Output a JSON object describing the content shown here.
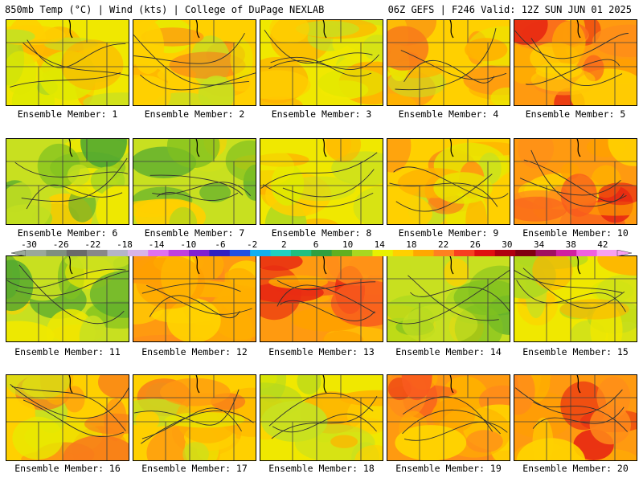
{
  "header": {
    "left": "850mb Temp (°C) | Wind (kts) | College of DuPage NEXLAB",
    "right": "06Z GEFS | F246 Valid: 12Z SUN JUN 01 2025"
  },
  "colorbar": {
    "tick_labels": [
      "-30",
      "-26",
      "-22",
      "-18",
      "-14",
      "-10",
      "-6",
      "-2",
      "2",
      "6",
      "10",
      "14",
      "18",
      "22",
      "26",
      "30",
      "34",
      "38",
      "42"
    ],
    "colors": [
      "#9aa89a",
      "#7f8f7f",
      "#6a6a6a",
      "#888888",
      "#b4b4c8",
      "#d8b4e8",
      "#e070f0",
      "#c040e0",
      "#8020d0",
      "#3020c0",
      "#2050e0",
      "#10b0f0",
      "#20d0c0",
      "#20c080",
      "#30a040",
      "#60b020",
      "#a8d820",
      "#e8f000",
      "#ffd000",
      "#ffa800",
      "#ff8020",
      "#f84020",
      "#e01010",
      "#b00010",
      "#800010",
      "#a01060",
      "#d020a0",
      "#f060e0",
      "#f8a0f0"
    ]
  },
  "panels": [
    {
      "label": "Ensemble Member: 1",
      "theme": "mixed"
    },
    {
      "label": "Ensemble Member: 2",
      "theme": "warm"
    },
    {
      "label": "Ensemble Member: 3",
      "theme": "mixed"
    },
    {
      "label": "Ensemble Member: 4",
      "theme": "warm"
    },
    {
      "label": "Ensemble Member: 5",
      "theme": "hot"
    },
    {
      "label": "Ensemble Member: 6",
      "theme": "cool"
    },
    {
      "label": "Ensemble Member: 7",
      "theme": "cool"
    },
    {
      "label": "Ensemble Member: 8",
      "theme": "mixed"
    },
    {
      "label": "Ensemble Member: 9",
      "theme": "warm"
    },
    {
      "label": "Ensemble Member: 10",
      "theme": "hot"
    },
    {
      "label": "Ensemble Member: 11",
      "theme": "cool"
    },
    {
      "label": "Ensemble Member: 12",
      "theme": "hot"
    },
    {
      "label": "Ensemble Member: 13",
      "theme": "hot"
    },
    {
      "label": "Ensemble Member: 14",
      "theme": "cool"
    },
    {
      "label": "Ensemble Member: 15",
      "theme": "mixed"
    },
    {
      "label": "Ensemble Member: 16",
      "theme": "warm"
    },
    {
      "label": "Ensemble Member: 17",
      "theme": "warm"
    },
    {
      "label": "Ensemble Member: 18",
      "theme": "mixed"
    },
    {
      "label": "Ensemble Member: 19",
      "theme": "hot"
    },
    {
      "label": "Ensemble Member: 20",
      "theme": "hot"
    }
  ]
}
